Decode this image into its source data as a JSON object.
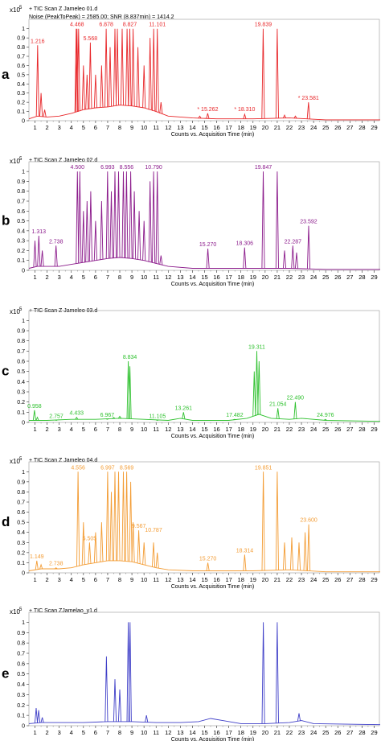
{
  "xaxis": {
    "label": "Counts vs. Acquisition Time (min)",
    "range": [
      0.5,
      29.5
    ],
    "ticks": [
      1,
      2,
      3,
      4,
      5,
      6,
      7,
      8,
      9,
      10,
      11,
      12,
      13,
      14,
      15,
      16,
      17,
      18,
      19,
      20,
      21,
      22,
      23,
      24,
      25,
      26,
      27,
      28,
      29
    ]
  },
  "chart_data": [
    {
      "type": "line",
      "panel_letter": "a",
      "title": "TIC Scan Z Jameleo 01.d",
      "subtitle": "Noise (PeakToPeak) = 2585.00; SNR (8.837min) = 1414.2",
      "scale_label": "x10",
      "scale_exp": "5",
      "color": "#e8272a",
      "ylim": [
        0,
        1.05
      ],
      "yticks": [
        0,
        0.1,
        0.2,
        0.3,
        0.4,
        0.5,
        0.6,
        0.7,
        0.8,
        0.9,
        1
      ],
      "baseline": [
        [
          0.5,
          0.02
        ],
        [
          1.2,
          0.05
        ],
        [
          2,
          0.04
        ],
        [
          3,
          0.05
        ],
        [
          4,
          0.08
        ],
        [
          5,
          0.12
        ],
        [
          6,
          0.14
        ],
        [
          7,
          0.15
        ],
        [
          8,
          0.17
        ],
        [
          9,
          0.16
        ],
        [
          10,
          0.14
        ],
        [
          11,
          0.1
        ],
        [
          12,
          0.05
        ],
        [
          14,
          0.03
        ],
        [
          16,
          0.02
        ],
        [
          19,
          0.02
        ],
        [
          22,
          0.03
        ],
        [
          25,
          0.01
        ],
        [
          29.5,
          0.01
        ]
      ],
      "peaks": [
        [
          1.216,
          0.82
        ],
        [
          1.5,
          0.3
        ],
        [
          1.8,
          0.12
        ],
        [
          4.4,
          1.0
        ],
        [
          4.468,
          1.0
        ],
        [
          4.6,
          1.0
        ],
        [
          5.0,
          0.6
        ],
        [
          5.3,
          0.5
        ],
        [
          5.568,
          0.85
        ],
        [
          6.0,
          0.5
        ],
        [
          6.5,
          0.6
        ],
        [
          6.878,
          1.0
        ],
        [
          7.2,
          0.8
        ],
        [
          7.6,
          1.0
        ],
        [
          7.8,
          1.0
        ],
        [
          8.2,
          1.0
        ],
        [
          8.6,
          1.0
        ],
        [
          8.827,
          1.0
        ],
        [
          9.1,
          1.0
        ],
        [
          9.5,
          0.8
        ],
        [
          10.0,
          0.6
        ],
        [
          10.5,
          0.9
        ],
        [
          10.8,
          1.0
        ],
        [
          11.101,
          1.0
        ],
        [
          11.4,
          0.2
        ],
        [
          14.6,
          0.05
        ],
        [
          15.262,
          0.08
        ],
        [
          18.31,
          0.07
        ],
        [
          19.839,
          1.0
        ],
        [
          21.0,
          1.0
        ],
        [
          21.6,
          0.06
        ],
        [
          22.5,
          0.05
        ],
        [
          23.581,
          0.2
        ]
      ],
      "labels": [
        {
          "x": 1.216,
          "y": 0.82,
          "text": "1.216"
        },
        {
          "x": 4.468,
          "y": 1.0,
          "text": "4.468"
        },
        {
          "x": 5.568,
          "y": 0.85,
          "text": "5.568"
        },
        {
          "x": 6.878,
          "y": 1.0,
          "text": "6.878"
        },
        {
          "x": 8.827,
          "y": 1.0,
          "text": "8.827"
        },
        {
          "x": 11.101,
          "y": 1.0,
          "text": "11.101"
        },
        {
          "x": 15.262,
          "y": 0.08,
          "text": "15.262",
          "star": true
        },
        {
          "x": 18.31,
          "y": 0.08,
          "text": "18.310",
          "star": true
        },
        {
          "x": 19.839,
          "y": 1.0,
          "text": "19.839"
        },
        {
          "x": 23.581,
          "y": 0.2,
          "text": "23.581",
          "star": true
        }
      ]
    },
    {
      "type": "line",
      "panel_letter": "b",
      "title": "TIC Scan Z Jameleo 02.d",
      "subtitle": "",
      "scale_label": "x10",
      "scale_exp": "5",
      "color": "#8b1a8b",
      "ylim": [
        0,
        1.05
      ],
      "yticks": [
        0,
        0.1,
        0.2,
        0.3,
        0.4,
        0.5,
        0.6,
        0.7,
        0.8,
        0.9,
        1
      ],
      "baseline": [
        [
          0.5,
          0.02
        ],
        [
          1.2,
          0.04
        ],
        [
          2,
          0.04
        ],
        [
          3,
          0.04
        ],
        [
          4,
          0.06
        ],
        [
          5,
          0.08
        ],
        [
          6,
          0.1
        ],
        [
          7,
          0.12
        ],
        [
          8,
          0.13
        ],
        [
          9,
          0.12
        ],
        [
          10,
          0.1
        ],
        [
          11,
          0.07
        ],
        [
          12,
          0.04
        ],
        [
          14,
          0.02
        ],
        [
          16,
          0.02
        ],
        [
          19,
          0.02
        ],
        [
          22,
          0.02
        ],
        [
          25,
          0.01
        ],
        [
          29.5,
          0.01
        ]
      ],
      "peaks": [
        [
          1.0,
          0.3
        ],
        [
          1.313,
          0.35
        ],
        [
          1.6,
          0.2
        ],
        [
          2.738,
          0.25
        ],
        [
          4.5,
          1.0
        ],
        [
          4.7,
          1.0
        ],
        [
          5.0,
          0.6
        ],
        [
          5.3,
          0.7
        ],
        [
          5.6,
          0.8
        ],
        [
          6.0,
          0.5
        ],
        [
          6.5,
          0.7
        ],
        [
          6.993,
          1.0
        ],
        [
          7.3,
          0.8
        ],
        [
          7.6,
          1.0
        ],
        [
          7.9,
          1.0
        ],
        [
          8.3,
          1.0
        ],
        [
          8.556,
          1.0
        ],
        [
          8.9,
          1.0
        ],
        [
          9.2,
          0.8
        ],
        [
          9.6,
          0.6
        ],
        [
          10.0,
          0.5
        ],
        [
          10.5,
          0.9
        ],
        [
          10.79,
          1.0
        ],
        [
          11.1,
          1.0
        ],
        [
          11.4,
          0.15
        ],
        [
          15.27,
          0.22
        ],
        [
          18.306,
          0.23
        ],
        [
          19.847,
          1.0
        ],
        [
          21.0,
          1.0
        ],
        [
          21.6,
          0.2
        ],
        [
          22.287,
          0.25
        ],
        [
          22.6,
          0.18
        ],
        [
          23.592,
          0.45
        ]
      ],
      "labels": [
        {
          "x": 1.313,
          "y": 0.35,
          "text": "1.313"
        },
        {
          "x": 2.738,
          "y": 0.25,
          "text": "2.738"
        },
        {
          "x": 4.5,
          "y": 1.0,
          "text": "4.500"
        },
        {
          "x": 6.993,
          "y": 1.0,
          "text": "6.993"
        },
        {
          "x": 8.556,
          "y": 1.0,
          "text": "8.556"
        },
        {
          "x": 10.79,
          "y": 1.0,
          "text": "10.790"
        },
        {
          "x": 15.27,
          "y": 0.22,
          "text": "15.270"
        },
        {
          "x": 18.306,
          "y": 0.23,
          "text": "18.306"
        },
        {
          "x": 19.847,
          "y": 1.0,
          "text": "19.847"
        },
        {
          "x": 22.287,
          "y": 0.25,
          "text": "22.287"
        },
        {
          "x": 23.592,
          "y": 0.45,
          "text": "23.592"
        }
      ]
    },
    {
      "type": "line",
      "panel_letter": "c",
      "title": "TIC Scan Z Jameleo 03.d",
      "subtitle": "",
      "scale_label": "x10",
      "scale_exp": "5",
      "color": "#2ec12e",
      "ylim": [
        0,
        1.05
      ],
      "yticks": [
        0,
        0.1,
        0.2,
        0.3,
        0.4,
        0.5,
        0.6,
        0.7,
        0.8,
        0.9,
        1
      ],
      "baseline": [
        [
          0.5,
          0.02
        ],
        [
          2,
          0.02
        ],
        [
          4,
          0.03
        ],
        [
          6,
          0.03
        ],
        [
          8,
          0.04
        ],
        [
          10,
          0.03
        ],
        [
          12,
          0.02
        ],
        [
          13,
          0.04
        ],
        [
          14,
          0.02
        ],
        [
          17,
          0.02
        ],
        [
          18.5,
          0.04
        ],
        [
          19.5,
          0.08
        ],
        [
          20.5,
          0.04
        ],
        [
          22,
          0.03
        ],
        [
          23,
          0.04
        ],
        [
          25,
          0.02
        ],
        [
          29.5,
          0.01
        ]
      ],
      "peaks": [
        [
          0.958,
          0.12
        ],
        [
          1.2,
          0.05
        ],
        [
          2.757,
          0.02
        ],
        [
          4.433,
          0.05
        ],
        [
          6.967,
          0.03
        ],
        [
          7.5,
          0.05
        ],
        [
          8.0,
          0.06
        ],
        [
          8.7,
          0.6
        ],
        [
          8.834,
          0.55
        ],
        [
          11.105,
          0.02
        ],
        [
          13.261,
          0.1
        ],
        [
          17.482,
          0.03
        ],
        [
          19.1,
          0.5
        ],
        [
          19.311,
          0.7
        ],
        [
          19.5,
          0.6
        ],
        [
          21.054,
          0.14
        ],
        [
          22.49,
          0.2
        ],
        [
          24.976,
          0.03
        ]
      ],
      "labels": [
        {
          "x": 0.958,
          "y": 0.12,
          "text": "0.958"
        },
        {
          "x": 2.757,
          "y": 0.02,
          "text": "2.757"
        },
        {
          "x": 4.433,
          "y": 0.05,
          "text": "4.433"
        },
        {
          "x": 6.967,
          "y": 0.03,
          "text": "6.967"
        },
        {
          "x": 8.834,
          "y": 0.6,
          "text": "8.834"
        },
        {
          "x": 11.105,
          "y": 0.02,
          "text": "11.105"
        },
        {
          "x": 13.261,
          "y": 0.1,
          "text": "13.261"
        },
        {
          "x": 17.482,
          "y": 0.03,
          "text": "17.482"
        },
        {
          "x": 19.311,
          "y": 0.7,
          "text": "19.311"
        },
        {
          "x": 21.054,
          "y": 0.14,
          "text": "21.054"
        },
        {
          "x": 22.49,
          "y": 0.2,
          "text": "22.490"
        },
        {
          "x": 24.976,
          "y": 0.03,
          "text": "24.976"
        }
      ]
    },
    {
      "type": "line",
      "panel_letter": "d",
      "title": "TIC Scan Z Jameleo 04.d",
      "subtitle": "",
      "scale_label": "x10",
      "scale_exp": "5",
      "color": "#f39c34",
      "ylim": [
        0,
        1.05
      ],
      "yticks": [
        0,
        0.1,
        0.2,
        0.3,
        0.4,
        0.5,
        0.6,
        0.7,
        0.8,
        0.9,
        1
      ],
      "baseline": [
        [
          0.5,
          0.02
        ],
        [
          1.5,
          0.04
        ],
        [
          3,
          0.04
        ],
        [
          4,
          0.05
        ],
        [
          5,
          0.08
        ],
        [
          6,
          0.1
        ],
        [
          7,
          0.12
        ],
        [
          8,
          0.12
        ],
        [
          9,
          0.11
        ],
        [
          10,
          0.08
        ],
        [
          11,
          0.05
        ],
        [
          12,
          0.03
        ],
        [
          14,
          0.02
        ],
        [
          17,
          0.02
        ],
        [
          19,
          0.02
        ],
        [
          22,
          0.03
        ],
        [
          25,
          0.01
        ],
        [
          29.5,
          0.01
        ]
      ],
      "peaks": [
        [
          1.149,
          0.12
        ],
        [
          1.5,
          0.08
        ],
        [
          2.738,
          0.05
        ],
        [
          4.556,
          1.0
        ],
        [
          5.0,
          0.5
        ],
        [
          5.505,
          0.3
        ],
        [
          6.0,
          0.4
        ],
        [
          6.5,
          0.5
        ],
        [
          6.997,
          1.0
        ],
        [
          7.3,
          0.8
        ],
        [
          7.6,
          1.0
        ],
        [
          7.9,
          1.0
        ],
        [
          8.3,
          1.0
        ],
        [
          8.569,
          1.0
        ],
        [
          8.9,
          0.9
        ],
        [
          9.1,
          0.5
        ],
        [
          9.567,
          0.42
        ],
        [
          10.0,
          0.3
        ],
        [
          10.787,
          0.3
        ],
        [
          11.1,
          0.2
        ],
        [
          15.27,
          0.1
        ],
        [
          18.314,
          0.18
        ],
        [
          19.851,
          1.0
        ],
        [
          21.0,
          1.0
        ],
        [
          21.6,
          0.3
        ],
        [
          22.2,
          0.35
        ],
        [
          22.8,
          0.3
        ],
        [
          23.3,
          0.4
        ],
        [
          23.6,
          0.48
        ]
      ],
      "labels": [
        {
          "x": 1.149,
          "y": 0.12,
          "text": "1.149"
        },
        {
          "x": 2.738,
          "y": 0.05,
          "text": "2.738"
        },
        {
          "x": 4.556,
          "y": 1.0,
          "text": "4.556"
        },
        {
          "x": 5.505,
          "y": 0.3,
          "text": "5.505"
        },
        {
          "x": 6.997,
          "y": 1.0,
          "text": "6.997"
        },
        {
          "x": 8.569,
          "y": 1.0,
          "text": "8.569"
        },
        {
          "x": 9.567,
          "y": 0.42,
          "text": "9.567"
        },
        {
          "x": 10.787,
          "y": 0.38,
          "text": "10.787"
        },
        {
          "x": 15.27,
          "y": 0.1,
          "text": "15.270"
        },
        {
          "x": 18.314,
          "y": 0.18,
          "text": "18.314"
        },
        {
          "x": 19.851,
          "y": 1.0,
          "text": "19.851"
        },
        {
          "x": 23.6,
          "y": 0.48,
          "text": "23.600"
        }
      ]
    },
    {
      "type": "line",
      "panel_letter": "e",
      "title": "TIC Scan ZJamelao_y1.d",
      "subtitle": "",
      "scale_label": "x10",
      "scale_exp": "5",
      "color": "#3f3fc8",
      "ylim": [
        0,
        1.05
      ],
      "yticks": [
        0,
        0.1,
        0.2,
        0.3,
        0.4,
        0.5,
        0.6,
        0.7,
        0.8,
        0.9,
        1
      ],
      "baseline": [
        [
          0.5,
          0.02
        ],
        [
          1.5,
          0.03
        ],
        [
          3,
          0.03
        ],
        [
          5,
          0.03
        ],
        [
          7,
          0.04
        ],
        [
          9,
          0.04
        ],
        [
          11,
          0.03
        ],
        [
          13,
          0.03
        ],
        [
          14.5,
          0.04
        ],
        [
          15.5,
          0.07
        ],
        [
          16.5,
          0.05
        ],
        [
          18,
          0.02
        ],
        [
          20,
          0.02
        ],
        [
          22,
          0.03
        ],
        [
          23,
          0.05
        ],
        [
          24,
          0.02
        ],
        [
          29.5,
          0.01
        ]
      ],
      "peaks": [
        [
          1.1,
          0.17
        ],
        [
          1.3,
          0.15
        ],
        [
          1.6,
          0.08
        ],
        [
          6.9,
          0.67
        ],
        [
          7.6,
          0.45
        ],
        [
          8.0,
          0.35
        ],
        [
          8.7,
          1.0
        ],
        [
          8.85,
          1.0
        ],
        [
          10.2,
          0.1
        ],
        [
          19.85,
          1.0
        ],
        [
          21.0,
          1.0
        ],
        [
          22.8,
          0.12
        ]
      ],
      "labels": []
    }
  ]
}
